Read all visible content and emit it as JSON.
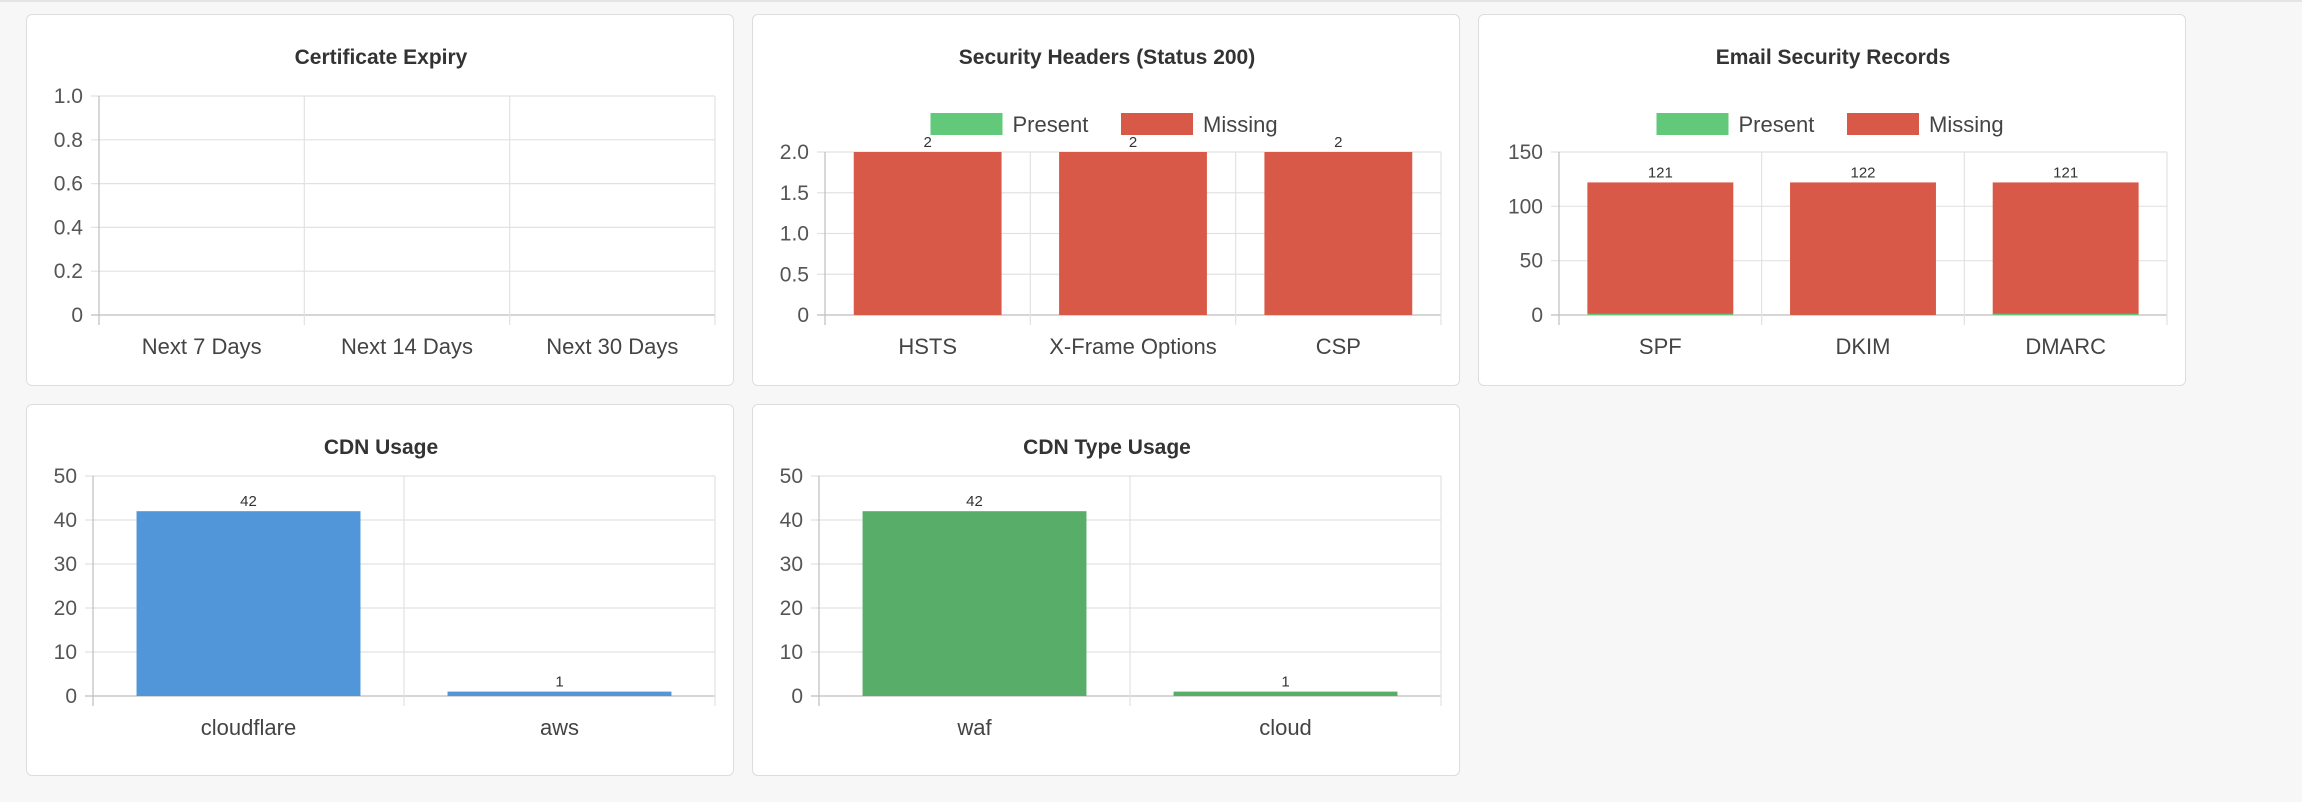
{
  "chart_data": [
    {
      "id": "cert",
      "type": "bar",
      "title": "Certificate Expiry",
      "categories": [
        "Next 7 Days",
        "Next 14 Days",
        "Next 30 Days"
      ],
      "series": [
        {
          "values": [
            0,
            0,
            0
          ],
          "color": "#4f95d8"
        }
      ],
      "ylim": [
        0,
        1
      ],
      "yticks": [
        "0",
        "0.2",
        "0.4",
        "0.6",
        "0.8",
        "1.0"
      ],
      "show_data_labels": false,
      "legend": null,
      "grid": true
    },
    {
      "id": "headers",
      "type": "bar",
      "title": "Security Headers (Status 200)",
      "categories": [
        "HSTS",
        "X-Frame Options",
        "CSP"
      ],
      "series": [
        {
          "name": "Present",
          "values": [
            0,
            0,
            0
          ],
          "color": "#62c97a"
        },
        {
          "name": "Missing",
          "values": [
            2,
            2,
            2
          ],
          "color": "#d95948"
        }
      ],
      "stacked": true,
      "ylim": [
        0,
        2
      ],
      "yticks": [
        "0",
        "0.5",
        "1.0",
        "1.5",
        "2.0"
      ],
      "show_data_labels": true,
      "legend": "top",
      "grid": true
    },
    {
      "id": "email",
      "type": "bar",
      "title": "Email Security Records",
      "categories": [
        "SPF",
        "DKIM",
        "DMARC"
      ],
      "series": [
        {
          "name": "Present",
          "values": [
            1,
            0,
            1
          ],
          "color": "#62c97a"
        },
        {
          "name": "Missing",
          "values": [
            121,
            122,
            121
          ],
          "color": "#d95948"
        }
      ],
      "stacked": true,
      "ylim": [
        0,
        150
      ],
      "yticks": [
        "0",
        "50",
        "100",
        "150"
      ],
      "show_data_labels": true,
      "legend": "top",
      "grid": true
    },
    {
      "id": "cdn",
      "type": "bar",
      "title": "CDN Usage",
      "categories": [
        "cloudflare",
        "aws"
      ],
      "series": [
        {
          "values": [
            42,
            1
          ],
          "color": "#5096d9"
        }
      ],
      "ylim": [
        0,
        50
      ],
      "yticks": [
        "0",
        "10",
        "20",
        "30",
        "40",
        "50"
      ],
      "show_data_labels": true,
      "legend": null,
      "grid": true
    },
    {
      "id": "cdntype",
      "type": "bar",
      "title": "CDN Type Usage",
      "categories": [
        "waf",
        "cloud"
      ],
      "series": [
        {
          "values": [
            42,
            1
          ],
          "color": "#58ad69"
        }
      ],
      "ylim": [
        0,
        50
      ],
      "yticks": [
        "0",
        "10",
        "20",
        "30",
        "40",
        "50"
      ],
      "show_data_labels": true,
      "legend": null,
      "grid": true
    }
  ]
}
